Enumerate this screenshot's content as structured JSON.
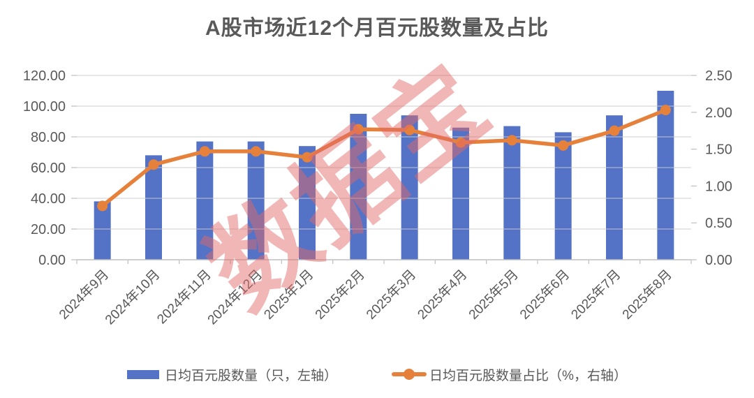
{
  "title": "A股市场近12个月百元股数量及占比",
  "watermark": "数据宝",
  "colors": {
    "bar": "#5573C6",
    "line": "#E6813C",
    "title_text": "#595959",
    "axis_text": "#595959",
    "gridline": "#C9C9C9",
    "axis_line": "#BFBFBF",
    "watermark": "#E26868"
  },
  "legend": {
    "bar_label": "日均百元股数量（只，左轴）",
    "line_label": "日均百元股数量占比（%，右轴）"
  },
  "chart_data": {
    "type": "combo-bar-line",
    "title": "A股市场近12个月百元股数量及占比",
    "categories": [
      "2024年9月",
      "2024年10月",
      "2024年11月",
      "2024年12月",
      "2025年1月",
      "2025年2月",
      "2025年3月",
      "2025年4月",
      "2025年5月",
      "2025年6月",
      "2025年7月",
      "2025年8月"
    ],
    "series": [
      {
        "name": "日均百元股数量（只，左轴）",
        "type": "bar",
        "axis": "left",
        "values": [
          38,
          68,
          77,
          77,
          74,
          95,
          94,
          86,
          87,
          83,
          94,
          110
        ]
      },
      {
        "name": "日均百元股数量占比（%，右轴）",
        "type": "line",
        "axis": "right",
        "values": [
          0.73,
          1.29,
          1.47,
          1.47,
          1.39,
          1.77,
          1.76,
          1.59,
          1.62,
          1.55,
          1.75,
          2.03
        ]
      }
    ],
    "left_axis": {
      "min": 0,
      "max": 120,
      "step": 20,
      "tick_labels": [
        "0.00",
        "20.00",
        "40.00",
        "60.00",
        "80.00",
        "100.00",
        "120.00"
      ]
    },
    "right_axis": {
      "min": 0,
      "max": 2.5,
      "step": 0.5,
      "tick_labels": [
        "0.00",
        "0.50",
        "1.00",
        "1.50",
        "2.00",
        "2.50"
      ]
    },
    "grid": true,
    "legend_position": "bottom"
  }
}
